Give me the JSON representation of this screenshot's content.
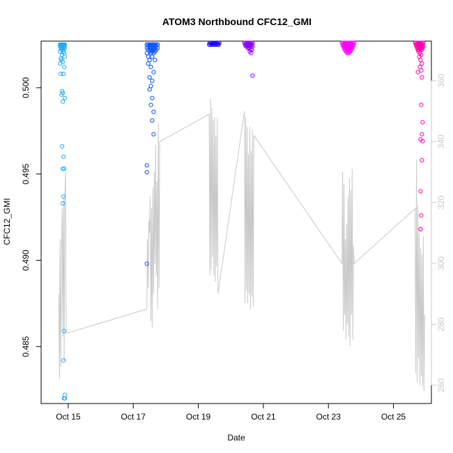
{
  "chart_data": {
    "type": "scatter",
    "title": "ATOM3 Northbound CFC12_GMI",
    "xlabel": "Date",
    "ylabel": "CFC12_GMI",
    "x_ticks": [
      "Oct 15",
      "Oct 17",
      "Oct 19",
      "Oct 21",
      "Oct 23",
      "Oct 25"
    ],
    "y_ticks": [
      "0.485",
      "0.490",
      "0.495",
      "0.500"
    ],
    "y2_ticks": [
      "260",
      "280",
      "300",
      "320",
      "340",
      "360"
    ],
    "xlim": [
      "2017-10-14 04:00",
      "2017-10-26 04:00"
    ],
    "ylim": [
      0.4817,
      0.5027
    ],
    "y2lim": [
      254,
      373
    ],
    "grid": false,
    "legend": "none",
    "colors": {
      "series_gradient": [
        "#1fa8ff",
        "#0051ff",
        "#1a00ff",
        "#8c00ff",
        "#ff00ff",
        "#ff00aa"
      ],
      "line": "#c8c8c8",
      "axis": "#000000",
      "right_axis": "#c8c8c8"
    },
    "series": [
      {
        "color": "#1fa8ff",
        "x": [
          "2017-10-14 18:00",
          "2017-10-14 18:30",
          "2017-10-14 19:00",
          "2017-10-14 19:30",
          "2017-10-14 20:00",
          "2017-10-14 20:30",
          "2017-10-14 21:00",
          "2017-10-14 21:30",
          "2017-10-14 18:00",
          "2017-10-14 19:00",
          "2017-10-14 20:00",
          "2017-10-14 21:00",
          "2017-10-14 18:30",
          "2017-10-14 19:30",
          "2017-10-14 20:30",
          "2017-10-14 21:30",
          "2017-10-14 19:00",
          "2017-10-14 20:00",
          "2017-10-14 18:00",
          "2017-10-14 20:30",
          "2017-10-14 21:00",
          "2017-10-14 19:30",
          "2017-10-14 18:30",
          "2017-10-14 21:30",
          "2017-10-14 19:00",
          "2017-10-14 20:00",
          "2017-10-14 18:00",
          "2017-10-14 21:00",
          "2017-10-14 18:30",
          "2017-10-14 20:30",
          "2017-10-14 19:30",
          "2017-10-14 20:00",
          "2017-10-14 19:00",
          "2017-10-14 21:30",
          "2017-10-14 20:00",
          "2017-10-14 19:30",
          "2017-10-14 20:30",
          "2017-10-14 21:00",
          "2017-10-14 20:00",
          "2017-10-14 20:30",
          "2017-10-14 20:00",
          "2017-10-14 21:00",
          "2017-10-14 20:30",
          "2017-10-14 21:30",
          "2017-10-14 21:00",
          "2017-10-14 21:30",
          "2017-10-14 21:00"
        ],
        "y": [
          0.5025,
          0.5025,
          0.5025,
          0.5025,
          0.5025,
          0.5025,
          0.5025,
          0.5025,
          0.5024,
          0.5024,
          0.5024,
          0.5024,
          0.5023,
          0.5023,
          0.5023,
          0.5023,
          0.5022,
          0.5022,
          0.5021,
          0.5021,
          0.502,
          0.5019,
          0.5017,
          0.5018,
          0.5016,
          0.5015,
          0.5014,
          0.5012,
          0.5008,
          0.5008,
          0.4998,
          0.4997,
          0.4996,
          0.4994,
          0.4992,
          0.4966,
          0.496,
          0.4953,
          0.4953,
          0.4937,
          0.4933,
          0.4859,
          0.4842,
          0.4822,
          0.482,
          0.482,
          0.482
        ]
      },
      {
        "color": "#0051ff",
        "x": [
          "2017-10-17 10:00",
          "2017-10-17 11:00",
          "2017-10-17 12:00",
          "2017-10-17 13:00",
          "2017-10-17 14:00",
          "2017-10-17 15:00",
          "2017-10-17 16:00",
          "2017-10-17 17:00",
          "2017-10-17 18:00",
          "2017-10-17 11:00",
          "2017-10-17 13:00",
          "2017-10-17 15:00",
          "2017-10-17 17:00",
          "2017-10-17 10:00",
          "2017-10-17 12:00",
          "2017-10-17 14:00",
          "2017-10-17 16:00",
          "2017-10-17 18:00",
          "2017-10-17 11:00",
          "2017-10-17 13:00",
          "2017-10-17 15:00",
          "2017-10-17 17:00",
          "2017-10-17 12:00",
          "2017-10-17 14:00",
          "2017-10-17 16:00",
          "2017-10-17 10:00",
          "2017-10-17 13:00",
          "2017-10-17 15:00",
          "2017-10-17 11:00",
          "2017-10-17 14:00",
          "2017-10-17 12:00",
          "2017-10-17 16:00",
          "2017-10-17 11:00",
          "2017-10-17 13:00",
          "2017-10-17 15:00",
          "2017-10-17 12:00",
          "2017-10-17 14:00",
          "2017-10-17 13:00",
          "2017-10-17 12:00",
          "2017-10-17 14:00",
          "2017-10-17 13:00",
          "2017-10-17 15:00",
          "2017-10-17 14:00",
          "2017-10-17 15:00",
          "2017-10-17 10:00",
          "2017-10-17 10:00",
          "2017-10-17 10:00"
        ],
        "y": [
          0.5025,
          0.5025,
          0.5025,
          0.5025,
          0.5025,
          0.5025,
          0.5025,
          0.5025,
          0.5025,
          0.5024,
          0.5024,
          0.5024,
          0.5024,
          0.5023,
          0.5023,
          0.5023,
          0.5023,
          0.5023,
          0.5022,
          0.5022,
          0.5022,
          0.5022,
          0.5021,
          0.5021,
          0.5021,
          0.502,
          0.502,
          0.502,
          0.5018,
          0.5018,
          0.5016,
          0.5016,
          0.5014,
          0.5012,
          0.5009,
          0.5006,
          0.5004,
          0.5001,
          0.4999,
          0.4994,
          0.499,
          0.4986,
          0.4981,
          0.4973,
          0.4955,
          0.4951,
          0.4898
        ]
      },
      {
        "color": "#1a00ff",
        "x": [
          "2017-10-19 08:00",
          "2017-10-19 09:00",
          "2017-10-19 10:00",
          "2017-10-19 11:00",
          "2017-10-19 12:00",
          "2017-10-19 13:00",
          "2017-10-19 14:00",
          "2017-10-19 15:00",
          "2017-10-19 08:30",
          "2017-10-19 09:30",
          "2017-10-19 10:30",
          "2017-10-19 11:30",
          "2017-10-19 12:30",
          "2017-10-19 13:30",
          "2017-10-19 14:30",
          "2017-10-19 15:30"
        ],
        "y": [
          0.5025,
          0.5025,
          0.5025,
          0.5025,
          0.5025,
          0.5025,
          0.5025,
          0.5025,
          0.5026,
          0.5026,
          0.5026,
          0.5026,
          0.5026,
          0.5026,
          0.5026,
          0.5026
        ]
      },
      {
        "color": "#8c00ff",
        "x": [
          "2017-10-20 10:00",
          "2017-10-20 11:00",
          "2017-10-20 12:00",
          "2017-10-20 13:00",
          "2017-10-20 14:00",
          "2017-10-20 15:00",
          "2017-10-20 16:00",
          "2017-10-20 10:30",
          "2017-10-20 11:30",
          "2017-10-20 12:30",
          "2017-10-20 13:30",
          "2017-10-20 14:30",
          "2017-10-20 15:30",
          "2017-10-20 11:00",
          "2017-10-20 12:00",
          "2017-10-20 13:00",
          "2017-10-20 14:00",
          "2017-10-20 15:00",
          "2017-10-20 16:00",
          "2017-10-20 12:30",
          "2017-10-20 13:30",
          "2017-10-20 14:30",
          "2017-10-20 15:30",
          "2017-10-20 14:00",
          "2017-10-20 15:00",
          "2017-10-20 16:00"
        ],
        "y": [
          0.5026,
          0.5026,
          0.5026,
          0.5026,
          0.5026,
          0.5026,
          0.5026,
          0.5025,
          0.5025,
          0.5025,
          0.5025,
          0.5025,
          0.5025,
          0.5024,
          0.5024,
          0.5024,
          0.5024,
          0.5024,
          0.5024,
          0.5023,
          0.5023,
          0.5022,
          0.5022,
          0.5021,
          0.502,
          0.5007
        ]
      },
      {
        "color": "#ff00ff",
        "x": [
          "2017-10-23 10:00",
          "2017-10-23 11:00",
          "2017-10-23 12:00",
          "2017-10-23 13:00",
          "2017-10-23 14:00",
          "2017-10-23 15:00",
          "2017-10-23 16:00",
          "2017-10-23 17:00",
          "2017-10-23 18:00",
          "2017-10-23 19:00",
          "2017-10-23 10:30",
          "2017-10-23 11:30",
          "2017-10-23 12:30",
          "2017-10-23 13:30",
          "2017-10-23 14:30",
          "2017-10-23 15:30",
          "2017-10-23 16:30",
          "2017-10-23 17:30",
          "2017-10-23 18:30",
          "2017-10-23 11:00",
          "2017-10-23 12:00",
          "2017-10-23 13:00",
          "2017-10-23 14:00",
          "2017-10-23 15:00",
          "2017-10-23 16:00",
          "2017-10-23 17:00",
          "2017-10-23 18:00",
          "2017-10-23 11:30",
          "2017-10-23 12:30",
          "2017-10-23 13:30",
          "2017-10-23 14:30",
          "2017-10-23 15:30",
          "2017-10-23 16:30",
          "2017-10-23 17:30",
          "2017-10-23 12:00",
          "2017-10-23 13:00",
          "2017-10-23 14:00",
          "2017-10-23 15:00",
          "2017-10-23 16:00",
          "2017-10-23 17:00",
          "2017-10-23 13:00",
          "2017-10-23 14:00",
          "2017-10-23 15:00",
          "2017-10-23 16:00",
          "2017-10-23 14:00",
          "2017-10-23 15:00"
        ],
        "y": [
          0.5026,
          0.5026,
          0.5026,
          0.5026,
          0.5026,
          0.5026,
          0.5026,
          0.5026,
          0.5026,
          0.5026,
          0.5025,
          0.5025,
          0.5025,
          0.5025,
          0.5025,
          0.5025,
          0.5025,
          0.5025,
          0.5025,
          0.5024,
          0.5024,
          0.5024,
          0.5024,
          0.5024,
          0.5024,
          0.5024,
          0.5024,
          0.5023,
          0.5023,
          0.5023,
          0.5023,
          0.5023,
          0.5023,
          0.5023,
          0.5022,
          0.5022,
          0.5022,
          0.5022,
          0.5022,
          0.5022,
          0.5021,
          0.5021,
          0.5021,
          0.5021,
          0.502,
          0.502
        ]
      },
      {
        "color": "#ff00aa",
        "x": [
          "2017-10-25 16:00",
          "2017-10-25 17:00",
          "2017-10-25 18:00",
          "2017-10-25 19:00",
          "2017-10-25 20:00",
          "2017-10-25 21:00",
          "2017-10-25 22:00",
          "2017-10-25 16:30",
          "2017-10-25 17:30",
          "2017-10-25 18:30",
          "2017-10-25 19:30",
          "2017-10-25 20:30",
          "2017-10-25 21:30",
          "2017-10-25 17:00",
          "2017-10-25 18:00",
          "2017-10-25 19:00",
          "2017-10-25 20:00",
          "2017-10-25 21:00",
          "2017-10-25 22:00",
          "2017-10-25 17:30",
          "2017-10-25 18:30",
          "2017-10-25 19:30",
          "2017-10-25 20:30",
          "2017-10-25 21:30",
          "2017-10-25 18:00",
          "2017-10-25 19:00",
          "2017-10-25 20:00",
          "2017-10-25 21:00",
          "2017-10-25 18:30",
          "2017-10-25 19:30",
          "2017-10-25 20:30",
          "2017-10-25 19:00",
          "2017-10-25 20:00",
          "2017-10-25 21:00",
          "2017-10-25 19:30",
          "2017-10-25 20:30",
          "2017-10-25 18:00",
          "2017-10-25 21:00",
          "2017-10-25 20:30",
          "2017-10-25 21:30",
          "2017-10-25 21:00",
          "2017-10-25 20:00",
          "2017-10-25 21:30",
          "2017-10-25 21:00",
          "2017-10-25 20:00",
          "2017-10-25 20:30",
          "2017-10-25 20:00",
          "2017-10-25 20:00"
        ],
        "y": [
          0.5026,
          0.5026,
          0.5026,
          0.5026,
          0.5026,
          0.5026,
          0.5026,
          0.5025,
          0.5025,
          0.5025,
          0.5025,
          0.5025,
          0.5025,
          0.5024,
          0.5024,
          0.5024,
          0.5024,
          0.5024,
          0.5024,
          0.5023,
          0.5023,
          0.5023,
          0.5023,
          0.5023,
          0.5022,
          0.5022,
          0.5022,
          0.5022,
          0.5021,
          0.502,
          0.5019,
          0.5018,
          0.5016,
          0.5014,
          0.5012,
          0.501,
          0.5009,
          0.5006,
          0.499,
          0.498,
          0.4973,
          0.497,
          0.4969,
          0.4958,
          0.494,
          0.4926,
          0.4918,
          0.4918
        ]
      }
    ],
    "line_series": {
      "axis": "right",
      "color": "#c8c8c8",
      "x": [
        "2017-10-14 17:00",
        "2017-10-14 17:30",
        "2017-10-14 18:00",
        "2017-10-14 18:30",
        "2017-10-14 19:00",
        "2017-10-14 19:30",
        "2017-10-14 20:00",
        "2017-10-14 20:30",
        "2017-10-14 21:00",
        "2017-10-14 21:30",
        "2017-10-14 22:00",
        "2017-10-14 22:30",
        "2017-10-17 10:00",
        "2017-10-17 10:30",
        "2017-10-17 11:00",
        "2017-10-17 11:30",
        "2017-10-17 12:00",
        "2017-10-17 12:30",
        "2017-10-17 13:00",
        "2017-10-17 13:30",
        "2017-10-17 14:00",
        "2017-10-17 14:30",
        "2017-10-17 15:00",
        "2017-10-17 15:30",
        "2017-10-17 16:00",
        "2017-10-17 16:30",
        "2017-10-17 17:00",
        "2017-10-17 17:30",
        "2017-10-17 18:00",
        "2017-10-17 18:30",
        "2017-10-17 19:00",
        "2017-10-17 19:30",
        "2017-10-19 08:00",
        "2017-10-19 08:30",
        "2017-10-19 09:00",
        "2017-10-19 09:30",
        "2017-10-19 10:00",
        "2017-10-19 10:30",
        "2017-10-19 11:00",
        "2017-10-19 11:30",
        "2017-10-19 12:00",
        "2017-10-19 12:30",
        "2017-10-19 13:00",
        "2017-10-19 13:30",
        "2017-10-19 14:00",
        "2017-10-19 14:30",
        "2017-10-20 10:00",
        "2017-10-20 10:30",
        "2017-10-20 11:00",
        "2017-10-20 11:30",
        "2017-10-20 12:00",
        "2017-10-20 12:30",
        "2017-10-20 13:00",
        "2017-10-20 13:30",
        "2017-10-20 14:00",
        "2017-10-20 14:30",
        "2017-10-20 15:00",
        "2017-10-20 15:30",
        "2017-10-20 16:00",
        "2017-10-20 16:30",
        "2017-10-20 17:00",
        "2017-10-23 10:00",
        "2017-10-23 10:30",
        "2017-10-23 11:00",
        "2017-10-23 11:30",
        "2017-10-23 12:00",
        "2017-10-23 12:30",
        "2017-10-23 13:00",
        "2017-10-23 13:30",
        "2017-10-23 14:00",
        "2017-10-23 14:30",
        "2017-10-23 15:00",
        "2017-10-23 15:30",
        "2017-10-23 16:00",
        "2017-10-23 16:30",
        "2017-10-23 17:00",
        "2017-10-23 17:30",
        "2017-10-23 18:00",
        "2017-10-23 18:30",
        "2017-10-23 19:00",
        "2017-10-25 16:00",
        "2017-10-25 16:30",
        "2017-10-25 17:00",
        "2017-10-25 17:30",
        "2017-10-25 18:00",
        "2017-10-25 18:30",
        "2017-10-25 19:00",
        "2017-10-25 19:30",
        "2017-10-25 20:00",
        "2017-10-25 20:30",
        "2017-10-25 21:00",
        "2017-10-25 21:30",
        "2017-10-25 22:00",
        "2017-10-25 22:30",
        "2017-10-25 23:00"
      ],
      "y": [
        290,
        262,
        308,
        266,
        304,
        318,
        276,
        322,
        268,
        322,
        330,
        277,
        285,
        308,
        292,
        314,
        310,
        322,
        281,
        318,
        279,
        325,
        290,
        330,
        300,
        339,
        296,
        327,
        285,
        346,
        292,
        340,
        349,
        296,
        354,
        298,
        351,
        302,
        347,
        296,
        348,
        294,
        342,
        299,
        348,
        290,
        350,
        287,
        348,
        291,
        345,
        287,
        336,
        290,
        345,
        285,
        337,
        289,
        344,
        286,
        342,
        300,
        330,
        278,
        326,
        283,
        308,
        275,
        313,
        280,
        322,
        276,
        328,
        273,
        324,
        283,
        331,
        275,
        306,
        300,
        318,
        264,
        334,
        261,
        319,
        269,
        310,
        260,
        305,
        263,
        303,
        260,
        309,
        258,
        283
      ]
    }
  }
}
